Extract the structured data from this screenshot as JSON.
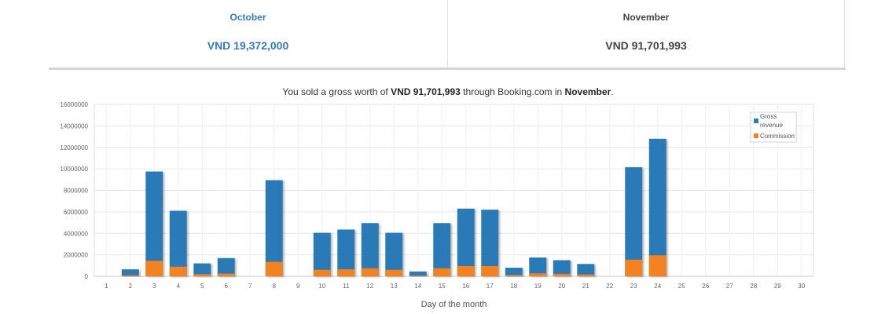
{
  "tabs": [
    {
      "month": "October",
      "amount": "VND 19,372,000"
    },
    {
      "month": "November",
      "amount": "VND 91,701,993"
    }
  ],
  "summary": {
    "prefix": "You sold a gross worth of ",
    "amount": "VND 91,701,993",
    "middle": " through Booking.com in ",
    "month": "November",
    "suffix": "."
  },
  "colors": {
    "gross": "#2a7ab8",
    "commission": "#f58220",
    "grid": "#e6e6e6"
  },
  "chart_data": {
    "type": "bar",
    "stacked": true,
    "xlabel": "Day of the month",
    "ylabel": "",
    "ylim": [
      0,
      16000000
    ],
    "yticks": [
      0,
      2000000,
      4000000,
      6000000,
      8000000,
      10000000,
      12000000,
      14000000,
      16000000
    ],
    "grid": true,
    "legend_position": "top-right",
    "categories": [
      "1",
      "2",
      "3",
      "4",
      "5",
      "6",
      "7",
      "8",
      "9",
      "10",
      "11",
      "12",
      "13",
      "14",
      "15",
      "16",
      "17",
      "18",
      "19",
      "20",
      "21",
      "22",
      "23",
      "24",
      "25",
      "26",
      "27",
      "28",
      "29",
      "30"
    ],
    "series": [
      {
        "name": "Gross revenue",
        "color": "#2a7ab8",
        "values": [
          0,
          650000,
          9750000,
          6100000,
          1200000,
          1700000,
          0,
          8950000,
          0,
          4050000,
          4350000,
          4950000,
          4050000,
          450000,
          4950000,
          6300000,
          6200000,
          800000,
          1750000,
          1500000,
          1150000,
          0,
          10150000,
          12800000,
          0,
          0,
          0,
          0,
          0,
          0
        ]
      },
      {
        "name": "Commission",
        "color": "#f58220",
        "values": [
          0,
          100000,
          1450000,
          900000,
          200000,
          250000,
          0,
          1350000,
          0,
          600000,
          650000,
          750000,
          600000,
          70000,
          750000,
          950000,
          950000,
          120000,
          270000,
          230000,
          170000,
          0,
          1550000,
          1950000,
          0,
          0,
          0,
          0,
          0,
          0
        ]
      }
    ]
  }
}
